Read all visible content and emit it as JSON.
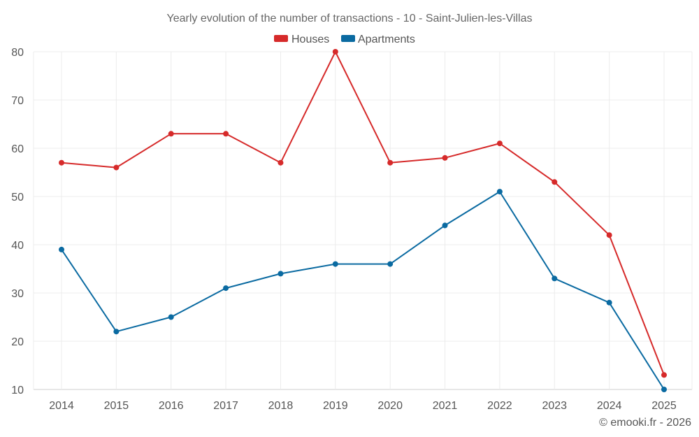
{
  "chart_data": {
    "type": "line",
    "title": "Yearly evolution of the number of transactions - 10 - Saint-Julien-les-Villas",
    "categories": [
      "2014",
      "2015",
      "2016",
      "2017",
      "2018",
      "2019",
      "2020",
      "2021",
      "2022",
      "2023",
      "2024",
      "2025"
    ],
    "series": [
      {
        "name": "Houses",
        "color": "#d62a2a",
        "values": [
          57,
          56,
          63,
          63,
          57,
          80,
          57,
          58,
          61,
          53,
          42,
          13
        ]
      },
      {
        "name": "Apartments",
        "color": "#0a6aa1",
        "values": [
          39,
          22,
          25,
          31,
          34,
          36,
          36,
          44,
          51,
          33,
          28,
          10
        ]
      }
    ],
    "ylim": [
      10,
      80
    ],
    "yticks": [
      "10",
      "20",
      "30",
      "40",
      "50",
      "60",
      "70",
      "80"
    ],
    "xlabel": "",
    "ylabel": "",
    "grid": true,
    "legend": "top-center"
  },
  "credit": "© emooki.fr - 2026"
}
